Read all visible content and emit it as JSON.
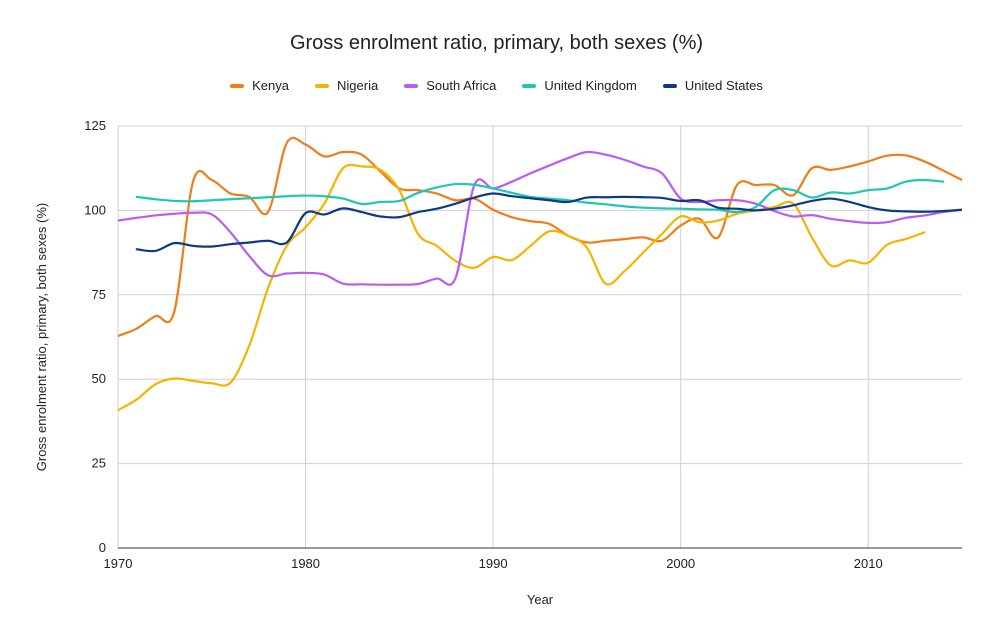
{
  "chart_data": {
    "type": "line",
    "title": "Gross enrolment ratio, primary, both sexes (%)",
    "xlabel": "Year",
    "ylabel": "Gross enrolment ratio, primary, both sexes (%)",
    "xlim": [
      1970,
      2015
    ],
    "ylim": [
      0,
      125
    ],
    "xticks": [
      1970,
      1980,
      1990,
      2000,
      2010
    ],
    "yticks": [
      0,
      25,
      50,
      75,
      100,
      125
    ],
    "grid": true,
    "legend_position": "top",
    "series": [
      {
        "name": "Kenya",
        "color": "#f07d19",
        "points": [
          [
            1970,
            62.8
          ],
          [
            1971,
            65
          ],
          [
            1972,
            68.7
          ],
          [
            1973,
            70
          ],
          [
            1974,
            108.5
          ],
          [
            1975,
            109
          ],
          [
            1976,
            105
          ],
          [
            1977,
            104
          ],
          [
            1978,
            99.5
          ],
          [
            1979,
            120
          ],
          [
            1980,
            119.5
          ],
          [
            1981,
            116
          ],
          [
            1982,
            117.3
          ],
          [
            1983,
            116.5
          ],
          [
            1984,
            111.5
          ],
          [
            1985,
            106.5
          ],
          [
            1986,
            106
          ],
          [
            1987,
            105
          ],
          [
            1988,
            103
          ],
          [
            1989,
            103.5
          ],
          [
            1990,
            100.2
          ],
          [
            1991,
            98
          ],
          [
            1992,
            96.8
          ],
          [
            1993,
            96
          ],
          [
            1994,
            92.5
          ],
          [
            1995,
            90.5
          ],
          [
            1996,
            91
          ],
          [
            1997,
            91.5
          ],
          [
            1998,
            92
          ],
          [
            1999,
            91
          ],
          [
            2000,
            95.5
          ],
          [
            2001,
            97.5
          ],
          [
            2002,
            92
          ],
          [
            2003,
            107.5
          ],
          [
            2004,
            107.5
          ],
          [
            2005,
            107.5
          ],
          [
            2006,
            104.5
          ],
          [
            2007,
            112.5
          ],
          [
            2008,
            112
          ],
          [
            2009,
            113
          ],
          [
            2010,
            114.5
          ],
          [
            2011,
            116.2
          ],
          [
            2012,
            116.3
          ],
          [
            2013,
            114.5
          ],
          [
            2014,
            111.8
          ],
          [
            2015,
            109
          ]
        ]
      },
      {
        "name": "Nigeria",
        "color": "#f5b400",
        "points": [
          [
            1970,
            40.8
          ],
          [
            1971,
            44
          ],
          [
            1972,
            48.5
          ],
          [
            1973,
            50.2
          ],
          [
            1974,
            49.5
          ],
          [
            1975,
            48.8
          ],
          [
            1976,
            49
          ],
          [
            1977,
            60
          ],
          [
            1978,
            77
          ],
          [
            1979,
            89.5
          ],
          [
            1980,
            95
          ],
          [
            1981,
            102
          ],
          [
            1982,
            112.5
          ],
          [
            1983,
            113
          ],
          [
            1984,
            112
          ],
          [
            1985,
            106
          ],
          [
            1986,
            93
          ],
          [
            1987,
            89.5
          ],
          [
            1988,
            85
          ],
          [
            1989,
            83
          ],
          [
            1990,
            86.2
          ],
          [
            1991,
            85.3
          ],
          [
            1992,
            89.5
          ],
          [
            1993,
            93.8
          ],
          [
            1994,
            92.5
          ],
          [
            1995,
            89
          ],
          [
            1996,
            78.3
          ],
          [
            1997,
            82
          ],
          [
            1998,
            87.5
          ],
          [
            1999,
            93
          ],
          [
            2000,
            98.2
          ],
          [
            2001,
            96.5
          ],
          [
            2002,
            97
          ],
          [
            2003,
            99
          ],
          [
            2004,
            100
          ],
          [
            2005,
            101
          ],
          [
            2006,
            102
          ],
          [
            2007,
            92
          ],
          [
            2008,
            83.7
          ],
          [
            2009,
            85.2
          ],
          [
            2010,
            84.5
          ],
          [
            2011,
            89.8
          ],
          [
            2012,
            91.5
          ],
          [
            2013,
            93.5
          ]
        ]
      },
      {
        "name": "South Africa",
        "color": "#b95cf5",
        "points": [
          [
            1970,
            97
          ],
          [
            1971,
            97.8
          ],
          [
            1972,
            98.5
          ],
          [
            1973,
            99
          ],
          [
            1974,
            99.3
          ],
          [
            1975,
            98.8
          ],
          [
            1976,
            93.5
          ],
          [
            1977,
            86.5
          ],
          [
            1978,
            80.8
          ],
          [
            1979,
            81.3
          ],
          [
            1980,
            81.5
          ],
          [
            1981,
            81
          ],
          [
            1982,
            78.3
          ],
          [
            1983,
            78.1
          ],
          [
            1984,
            78
          ],
          [
            1985,
            78
          ],
          [
            1986,
            78.2
          ],
          [
            1987,
            79.8
          ],
          [
            1988,
            80
          ],
          [
            1989,
            107.5
          ],
          [
            1990,
            106.5
          ],
          [
            1991,
            108.5
          ],
          [
            1992,
            111
          ],
          [
            1993,
            113.3
          ],
          [
            1994,
            115.5
          ],
          [
            1995,
            117.3
          ],
          [
            1996,
            116.5
          ],
          [
            1997,
            115
          ],
          [
            1998,
            113
          ],
          [
            1999,
            111
          ],
          [
            2000,
            103.5
          ],
          [
            2001,
            102.5
          ],
          [
            2002,
            103
          ],
          [
            2003,
            103
          ],
          [
            2004,
            102
          ],
          [
            2005,
            99.8
          ],
          [
            2006,
            98.2
          ],
          [
            2007,
            98.6
          ],
          [
            2008,
            97.5
          ],
          [
            2009,
            96.8
          ],
          [
            2010,
            96.3
          ],
          [
            2011,
            96.5
          ],
          [
            2012,
            97.8
          ],
          [
            2013,
            98.5
          ],
          [
            2014,
            99.5
          ],
          [
            2015,
            100.2
          ]
        ]
      },
      {
        "name": "United Kingdom",
        "color": "#1ec7b4",
        "points": [
          [
            1971,
            104
          ],
          [
            1972,
            103.3
          ],
          [
            1973,
            102.8
          ],
          [
            1974,
            102.7
          ],
          [
            1975,
            103
          ],
          [
            1976,
            103.3
          ],
          [
            1977,
            103.6
          ],
          [
            1978,
            103.9
          ],
          [
            1979,
            104.2
          ],
          [
            1980,
            104.4
          ],
          [
            1981,
            104.2
          ],
          [
            1982,
            103.5
          ],
          [
            1983,
            101.9
          ],
          [
            1984,
            102.5
          ],
          [
            1985,
            102.8
          ],
          [
            1986,
            105.2
          ],
          [
            1987,
            106.8
          ],
          [
            1988,
            107.8
          ],
          [
            1989,
            107.6
          ],
          [
            1990,
            106.5
          ],
          [
            1991,
            105.2
          ],
          [
            1992,
            104
          ],
          [
            1993,
            103.5
          ],
          [
            1994,
            103
          ],
          [
            1995,
            102.3
          ],
          [
            1996,
            101.8
          ],
          [
            1997,
            101.2
          ],
          [
            1998,
            100.8
          ],
          [
            1999,
            100.6
          ],
          [
            2000,
            100.5
          ],
          [
            2001,
            100.3
          ],
          [
            2002,
            100.2
          ],
          [
            2003,
            99.5
          ],
          [
            2004,
            101
          ],
          [
            2005,
            106
          ],
          [
            2006,
            106
          ],
          [
            2007,
            103.8
          ],
          [
            2008,
            105.3
          ],
          [
            2009,
            105
          ],
          [
            2010,
            106
          ],
          [
            2011,
            106.5
          ],
          [
            2012,
            108.5
          ],
          [
            2013,
            109
          ],
          [
            2014,
            108.5
          ]
        ]
      },
      {
        "name": "United States",
        "color": "#0d3a82",
        "points": [
          [
            1971,
            88.5
          ],
          [
            1972,
            88
          ],
          [
            1973,
            90.3
          ],
          [
            1974,
            89.5
          ],
          [
            1975,
            89.3
          ],
          [
            1976,
            90
          ],
          [
            1977,
            90.5
          ],
          [
            1978,
            91
          ],
          [
            1979,
            90.5
          ],
          [
            1980,
            99.2
          ],
          [
            1981,
            98.8
          ],
          [
            1982,
            100.6
          ],
          [
            1983,
            99.5
          ],
          [
            1984,
            98.2
          ],
          [
            1985,
            98
          ],
          [
            1986,
            99.5
          ],
          [
            1987,
            100.5
          ],
          [
            1988,
            102
          ],
          [
            1989,
            103.8
          ],
          [
            1990,
            105
          ],
          [
            1991,
            104.2
          ],
          [
            1992,
            103.6
          ],
          [
            1993,
            103
          ],
          [
            1994,
            102.5
          ],
          [
            1995,
            103.8
          ],
          [
            1996,
            103.9
          ],
          [
            1997,
            104
          ],
          [
            1998,
            103.9
          ],
          [
            1999,
            103.7
          ],
          [
            2000,
            102.8
          ],
          [
            2001,
            103
          ],
          [
            2002,
            100.8
          ],
          [
            2003,
            100.5
          ],
          [
            2004,
            100
          ],
          [
            2005,
            100.5
          ],
          [
            2006,
            101.5
          ],
          [
            2007,
            102.8
          ],
          [
            2008,
            103.5
          ],
          [
            2009,
            102.5
          ],
          [
            2010,
            101
          ],
          [
            2011,
            100
          ],
          [
            2012,
            99.7
          ],
          [
            2013,
            99.6
          ],
          [
            2014,
            99.8
          ],
          [
            2015,
            100.2
          ]
        ]
      }
    ]
  }
}
